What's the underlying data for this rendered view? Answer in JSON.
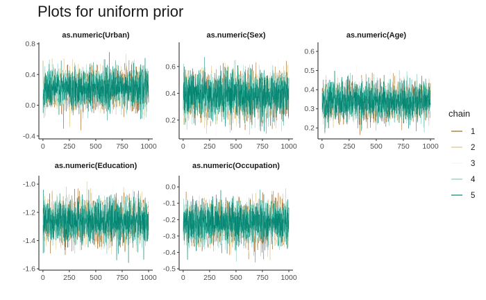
{
  "title": "Plots for uniform prior",
  "legend": {
    "title": "chain",
    "entries": [
      {
        "label": "1",
        "color": "#a6611a"
      },
      {
        "label": "2",
        "color": "#dfc27d"
      },
      {
        "label": "3",
        "color": "#f5f5f5"
      },
      {
        "label": "4",
        "color": "#80cdc1"
      },
      {
        "label": "5",
        "color": "#018571"
      }
    ]
  },
  "chart_data": [
    {
      "type": "line",
      "title": "as.numeric(Urban)",
      "x_range": [
        1,
        1000
      ],
      "xticks": [
        0,
        250,
        500,
        750,
        1000
      ],
      "ylim": [
        -0.42,
        0.8
      ],
      "yticks": [
        -0.4,
        0.0,
        0.4,
        0.8
      ],
      "ytick_labels": [
        "-0.4",
        "0.0",
        "0.4",
        "0.8"
      ],
      "series_mean": 0.22,
      "series_sd": 0.13,
      "series_range_observed": [
        -0.37,
        0.77
      ]
    },
    {
      "type": "line",
      "title": "as.numeric(Sex)",
      "x_range": [
        1,
        1000
      ],
      "xticks": [
        0,
        250,
        500,
        750,
        1000
      ],
      "ylim": [
        0.07,
        0.77
      ],
      "yticks": [
        0.2,
        0.4,
        0.6
      ],
      "ytick_labels": [
        "0.2",
        "0.4",
        "0.6"
      ],
      "series_mean": 0.39,
      "series_sd": 0.085,
      "series_range_observed": [
        0.08,
        0.75
      ]
    },
    {
      "type": "line",
      "title": "as.numeric(Age)",
      "x_range": [
        1,
        1000
      ],
      "xticks": [
        0,
        250,
        500,
        750,
        1000
      ],
      "ylim": [
        0.15,
        0.64
      ],
      "yticks": [
        0.2,
        0.3,
        0.4,
        0.5,
        0.6
      ],
      "ytick_labels": [
        "0.2",
        "0.3",
        "0.4",
        "0.5",
        "0.6"
      ],
      "series_mean": 0.34,
      "series_sd": 0.05,
      "series_range_observed": [
        0.16,
        0.56
      ]
    },
    {
      "type": "line",
      "title": "as.numeric(Education)",
      "x_range": [
        1,
        1000
      ],
      "xticks": [
        0,
        250,
        500,
        750,
        1000
      ],
      "ylim": [
        -1.6,
        -0.95
      ],
      "yticks": [
        -1.6,
        -1.4,
        -1.2,
        -1.0
      ],
      "ytick_labels": [
        "-1.6",
        "-1.4",
        "-1.2",
        "-1.0"
      ],
      "series_mean": -1.26,
      "series_sd": 0.075,
      "series_range_observed": [
        -1.57,
        -0.98
      ]
    },
    {
      "type": "line",
      "title": "as.numeric(Occupation)",
      "x_range": [
        1,
        1000
      ],
      "xticks": [
        0,
        250,
        500,
        750,
        1000
      ],
      "ylim": [
        -0.5,
        0.06
      ],
      "yticks": [
        -0.5,
        -0.4,
        -0.3,
        -0.2,
        -0.1,
        0.0
      ],
      "ytick_labels": [
        "-0.5",
        "-0.4",
        "-0.3",
        "-0.2",
        "-0.1",
        "0.0"
      ],
      "series_mean": -0.22,
      "series_sd": 0.065,
      "series_range_observed": [
        -0.49,
        0.03
      ]
    }
  ]
}
